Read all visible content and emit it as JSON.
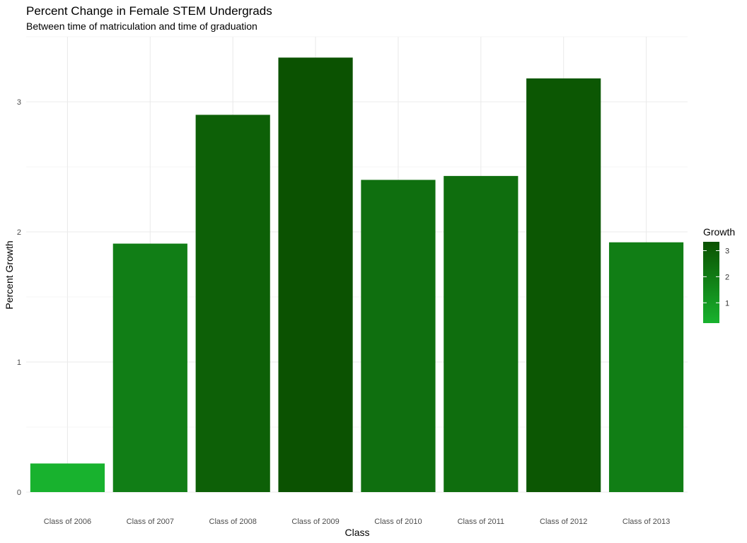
{
  "chart_data": {
    "type": "bar",
    "title": "Percent Change in Female STEM Undergrads",
    "subtitle": "Between time of matriculation and time of graduation",
    "xlabel": "Class",
    "ylabel": "Percent Growth",
    "categories": [
      "Class of 2006",
      "Class of 2007",
      "Class of 2008",
      "Class of 2009",
      "Class of 2010",
      "Class of 2011",
      "Class of 2012",
      "Class of 2013"
    ],
    "values": [
      0.22,
      1.91,
      2.9,
      3.34,
      2.4,
      2.43,
      3.18,
      1.92
    ],
    "ylim": [
      0,
      3.5
    ],
    "yticks": [
      0,
      1,
      2,
      3
    ],
    "grid": true,
    "legend": {
      "title": "Growth",
      "position": "right",
      "ticks": [
        1,
        2,
        3
      ],
      "range": [
        0.22,
        3.34
      ],
      "color_low": "#18b22e",
      "color_high": "#0b5201"
    }
  }
}
